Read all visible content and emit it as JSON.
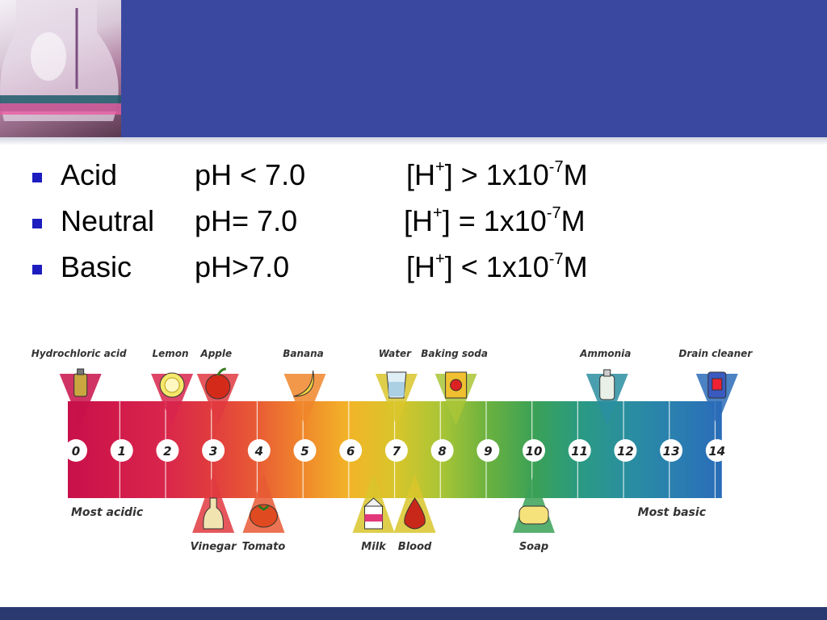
{
  "rows": [
    {
      "term": "Acid",
      "ph": "pH < 7.0",
      "h_pre": "[H",
      "h_sup": "+",
      "h_mid": "] > 1x10",
      "exp": "-7",
      "unit": "M"
    },
    {
      "term": "Neutral",
      "ph": "pH= 7.0",
      "h_pre": "[H",
      "h_sup": "+",
      "h_mid": "] = 1x10",
      "exp": "-7",
      "unit": "M"
    },
    {
      "term": "Basic",
      "ph": "pH>7.0",
      "h_pre": "[H",
      "h_sup": "+",
      "h_mid": "] < 1x10",
      "exp": "-7",
      "unit": "M"
    }
  ],
  "scale": {
    "numbers": [
      "0",
      "1",
      "2",
      "3",
      "4",
      "5",
      "6",
      "7",
      "8",
      "9",
      "10",
      "11",
      "12",
      "13",
      "14"
    ],
    "colors": [
      "#c8104a",
      "#d11a4a",
      "#d8254c",
      "#e03a3f",
      "#e85a35",
      "#f0862c",
      "#f2b428",
      "#d9c52b",
      "#a9c536",
      "#6ab13f",
      "#3aa157",
      "#2a9a84",
      "#2a8ea0",
      "#2a7fb0",
      "#2a6cb8"
    ],
    "left_label": "Most acidic",
    "right_label": "Most basic",
    "top_items": [
      {
        "name": "Hydrochloric acid",
        "ph": 0.1,
        "icon": "bottle-icon"
      },
      {
        "name": "Lemon",
        "ph": 2.1,
        "icon": "lemon-icon"
      },
      {
        "name": "Apple",
        "ph": 3.1,
        "icon": "apple-icon"
      },
      {
        "name": "Banana",
        "ph": 5.0,
        "icon": "banana-icon"
      },
      {
        "name": "Water",
        "ph": 7.0,
        "icon": "glass-icon"
      },
      {
        "name": "Baking soda",
        "ph": 8.3,
        "icon": "box-icon"
      },
      {
        "name": "Ammonia",
        "ph": 11.6,
        "icon": "ammonia-bottle-icon"
      },
      {
        "name": "Drain cleaner",
        "ph": 14.0,
        "icon": "cleaner-can-icon"
      }
    ],
    "bottom_items": [
      {
        "name": "Vinegar",
        "ph": 3.0,
        "icon": "vinegar-bottle-icon"
      },
      {
        "name": "Tomato",
        "ph": 4.1,
        "icon": "tomato-icon"
      },
      {
        "name": "Milk",
        "ph": 6.5,
        "icon": "milk-carton-icon"
      },
      {
        "name": "Blood",
        "ph": 7.4,
        "icon": "blood-drop-icon"
      },
      {
        "name": "Soap",
        "ph": 10.0,
        "icon": "soap-icon"
      }
    ]
  }
}
